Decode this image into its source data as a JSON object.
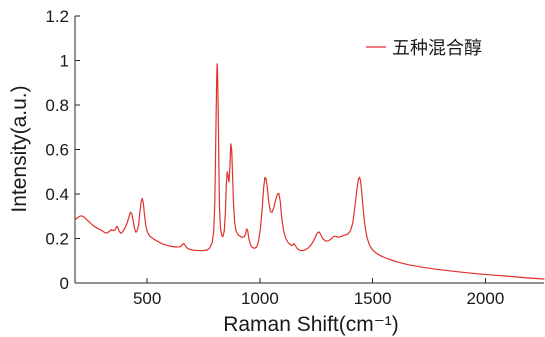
{
  "chart_data": {
    "type": "line",
    "xlabel": "Raman Shift(cm⁻¹)",
    "ylabel": "Intensity(a.u.)",
    "xlim": [
      180,
      2260
    ],
    "ylim": [
      0,
      1.2
    ],
    "xticks": [
      500,
      1000,
      1500,
      2000
    ],
    "xticklabels": [
      "500",
      "1000",
      "1500",
      "2000"
    ],
    "yticks": [
      0,
      0.2,
      0.4,
      0.6,
      0.8,
      1,
      1.2
    ],
    "yticklabels": [
      "0",
      "0.2",
      "0.4",
      "0.6",
      "0.8",
      "1",
      "1.2"
    ],
    "grid": false,
    "legend": {
      "position": "top-right"
    },
    "series": [
      {
        "name": "五种混合醇",
        "color": "#e0302c",
        "x": [
          180,
          190,
          200,
          210,
          220,
          235,
          250,
          265,
          280,
          295,
          310,
          322,
          332,
          342,
          350,
          358,
          365,
          370,
          376,
          383,
          392,
          402,
          412,
          420,
          426,
          432,
          438,
          444,
          450,
          456,
          462,
          468,
          474,
          478,
          483,
          488,
          494,
          500,
          510,
          525,
          545,
          570,
          600,
          630,
          648,
          656,
          662,
          668,
          676,
          690,
          710,
          740,
          765,
          778,
          788,
          795,
          800,
          804,
          808,
          810,
          812,
          815,
          818,
          821,
          825,
          830,
          836,
          842,
          847,
          851,
          855,
          859,
          863,
          867,
          871,
          875,
          879,
          883,
          888,
          894,
          902,
          912,
          922,
          930,
          936,
          941,
          946,
          951,
          958,
          966,
          976,
          986,
          994,
          1002,
          1010,
          1017,
          1022,
          1027,
          1033,
          1040,
          1047,
          1054,
          1062,
          1070,
          1078,
          1084,
          1090,
          1097,
          1105,
          1115,
          1125,
          1135,
          1143,
          1150,
          1156,
          1165,
          1178,
          1195,
          1212,
          1228,
          1242,
          1253,
          1261,
          1268,
          1278,
          1292,
          1305,
          1318,
          1328,
          1336,
          1348,
          1362,
          1376,
          1390,
          1402,
          1412,
          1421,
          1430,
          1437,
          1442,
          1447,
          1453,
          1460,
          1467,
          1475,
          1485,
          1498,
          1515,
          1540,
          1570,
          1610,
          1660,
          1720,
          1780,
          1840,
          1900,
          1960,
          2020,
          2080,
          2140,
          2200,
          2260
        ],
        "y": [
          0.285,
          0.292,
          0.3,
          0.302,
          0.296,
          0.282,
          0.268,
          0.255,
          0.246,
          0.238,
          0.228,
          0.224,
          0.232,
          0.24,
          0.236,
          0.238,
          0.255,
          0.25,
          0.232,
          0.224,
          0.23,
          0.248,
          0.272,
          0.3,
          0.318,
          0.31,
          0.28,
          0.245,
          0.228,
          0.235,
          0.262,
          0.32,
          0.368,
          0.38,
          0.362,
          0.31,
          0.258,
          0.232,
          0.212,
          0.2,
          0.188,
          0.175,
          0.166,
          0.162,
          0.163,
          0.172,
          0.178,
          0.17,
          0.158,
          0.15,
          0.147,
          0.145,
          0.148,
          0.158,
          0.18,
          0.23,
          0.36,
          0.62,
          0.9,
          0.985,
          0.96,
          0.78,
          0.52,
          0.34,
          0.25,
          0.215,
          0.208,
          0.235,
          0.32,
          0.44,
          0.5,
          0.48,
          0.455,
          0.52,
          0.625,
          0.6,
          0.48,
          0.36,
          0.275,
          0.235,
          0.218,
          0.21,
          0.205,
          0.208,
          0.22,
          0.243,
          0.235,
          0.2,
          0.172,
          0.16,
          0.156,
          0.162,
          0.185,
          0.24,
          0.33,
          0.43,
          0.474,
          0.47,
          0.43,
          0.36,
          0.32,
          0.318,
          0.34,
          0.375,
          0.4,
          0.403,
          0.37,
          0.29,
          0.235,
          0.2,
          0.182,
          0.172,
          0.168,
          0.176,
          0.17,
          0.155,
          0.146,
          0.146,
          0.155,
          0.172,
          0.198,
          0.222,
          0.23,
          0.222,
          0.2,
          0.188,
          0.19,
          0.2,
          0.21,
          0.21,
          0.206,
          0.21,
          0.215,
          0.22,
          0.235,
          0.27,
          0.34,
          0.42,
          0.468,
          0.475,
          0.455,
          0.395,
          0.31,
          0.25,
          0.205,
          0.172,
          0.15,
          0.135,
          0.12,
          0.108,
          0.094,
          0.082,
          0.071,
          0.062,
          0.055,
          0.048,
          0.042,
          0.037,
          0.032,
          0.027,
          0.022,
          0.018
        ]
      }
    ]
  }
}
